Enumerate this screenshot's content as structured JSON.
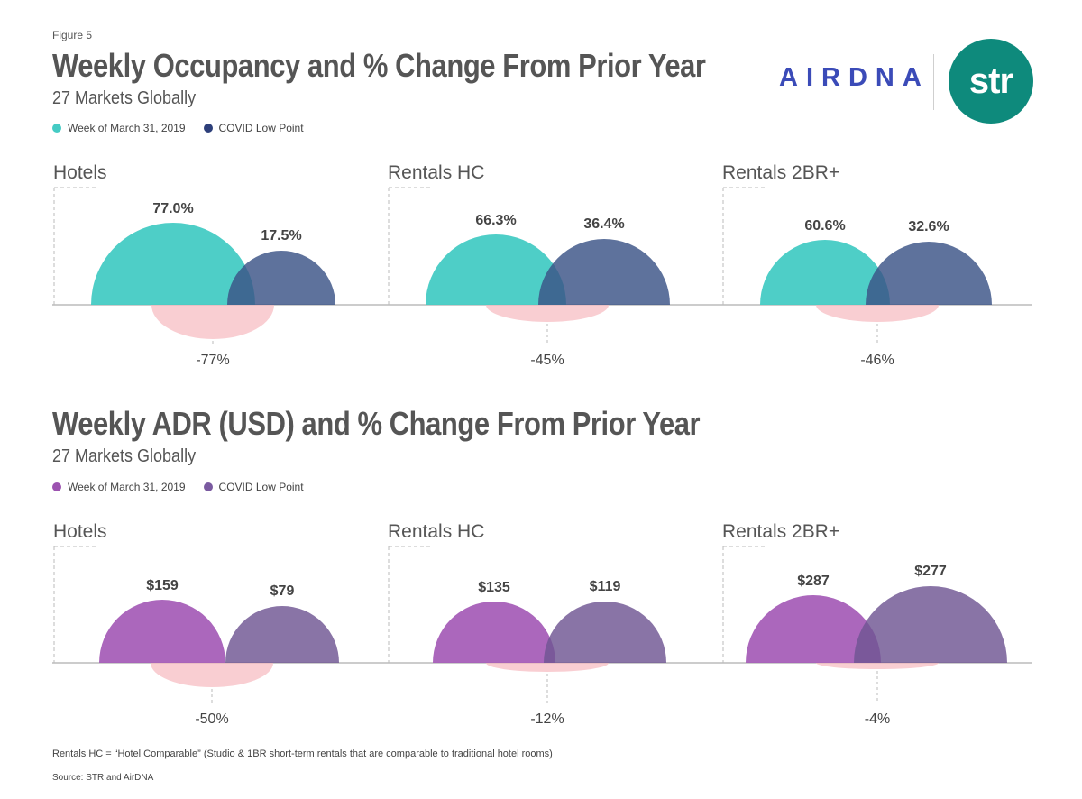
{
  "figure_label": "Figure 5",
  "logos": {
    "airdna": "AIRDNA",
    "str": "str"
  },
  "colors": {
    "teal": "#45cbc4",
    "navy": "#3a5386",
    "purple": "#a65fb8",
    "darkPurple": "#6f5593",
    "pink": "#f6b9bf",
    "axis": "#999999",
    "dash": "#bbbbbb",
    "legendNavy": "#2d3f7a",
    "legendPurple": "#9c52b0",
    "legendDarkPurple": "#7a5aa0"
  },
  "chart_data": [
    {
      "type": "semicircle",
      "title": "Weekly Occupancy and % Change From Prior Year",
      "subtitle": "27 Markets Globally",
      "legend": [
        "Week of March 31, 2019",
        "COVID Low Point"
      ],
      "unit": "%",
      "panels": [
        {
          "name": "Hotels",
          "baseline": 77.0,
          "low": 17.5,
          "baseline_label": "77.0%",
          "low_label": "17.5%",
          "change": -77,
          "change_label": "-77%"
        },
        {
          "name": "Rentals HC",
          "baseline": 66.3,
          "low": 36.4,
          "baseline_label": "66.3%",
          "low_label": "36.4%",
          "change": -45,
          "change_label": "-45%"
        },
        {
          "name": "Rentals 2BR+",
          "baseline": 60.6,
          "low": 32.6,
          "baseline_label": "60.6%",
          "low_label": "32.6%",
          "change": -46,
          "change_label": "-46%"
        }
      ]
    },
    {
      "type": "semicircle",
      "title": "Weekly ADR (USD) and % Change From Prior Year",
      "subtitle": "27 Markets Globally",
      "legend": [
        "Week of March 31, 2019",
        "COVID Low Point"
      ],
      "unit": "USD",
      "panels": [
        {
          "name": "Hotels",
          "baseline": 159,
          "low": 79,
          "baseline_label": "$159",
          "low_label": "$79",
          "change": -50,
          "change_label": "-50%"
        },
        {
          "name": "Rentals HC",
          "baseline": 135,
          "low": 119,
          "baseline_label": "$135",
          "low_label": "$119",
          "change": -12,
          "change_label": "-12%"
        },
        {
          "name": "Rentals 2BR+",
          "baseline": 287,
          "low": 277,
          "baseline_label": "$287",
          "low_label": "$277",
          "change": -4,
          "change_label": "-4%"
        }
      ]
    }
  ],
  "footnote": "Rentals HC = “Hotel Comparable” (Studio & 1BR short-term rentals that are comparable to traditional hotel rooms)",
  "source": "Source: STR and AirDNA"
}
